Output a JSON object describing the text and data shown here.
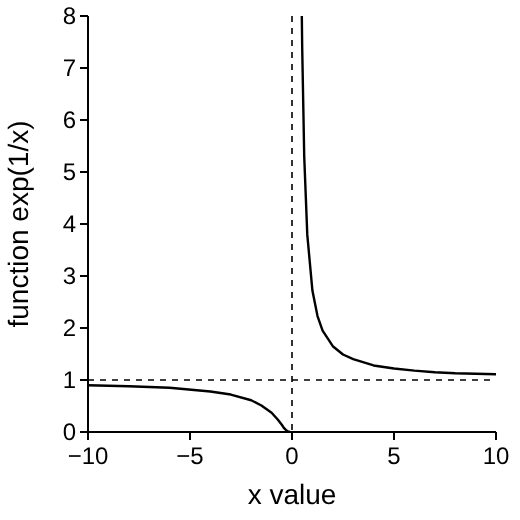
{
  "chart_data": {
    "type": "line",
    "xlabel": "x value",
    "ylabel": "function exp(1/x)",
    "xlim": [
      -10,
      10
    ],
    "ylim": [
      0,
      8
    ],
    "xticks": [
      -10,
      -5,
      0,
      5,
      10
    ],
    "yticks": [
      0,
      1,
      2,
      3,
      4,
      5,
      6,
      7,
      8
    ],
    "grid": false,
    "marker": "none",
    "line_style": "solid",
    "series": [
      {
        "color": "#000000",
        "x": [
          -10,
          -8,
          -6,
          -4,
          -3,
          -2,
          -1.5,
          -1,
          -0.7,
          -0.5,
          -0.4,
          -0.3,
          -0.2,
          -0.1,
          0,
          0.481,
          0.5,
          0.6,
          0.75,
          1,
          1.25,
          1.5,
          2,
          2.5,
          3,
          4,
          5,
          6,
          7,
          8,
          10
        ],
        "values": [
          0.9,
          0.88,
          0.85,
          0.78,
          0.72,
          0.61,
          0.51,
          0.37,
          0.24,
          0.14,
          0.08,
          0.04,
          0.01,
          0,
          null,
          8,
          7.39,
          5.29,
          3.79,
          2.72,
          2.23,
          1.95,
          1.65,
          1.49,
          1.4,
          1.28,
          1.22,
          1.18,
          1.15,
          1.13,
          1.11
        ]
      }
    ],
    "ref_lines": [
      {
        "axis": "x",
        "value": 0,
        "line_style": "dashed",
        "color": "#000000"
      },
      {
        "axis": "y",
        "value": 1,
        "line_style": "dashed",
        "color": "#000000"
      }
    ]
  }
}
